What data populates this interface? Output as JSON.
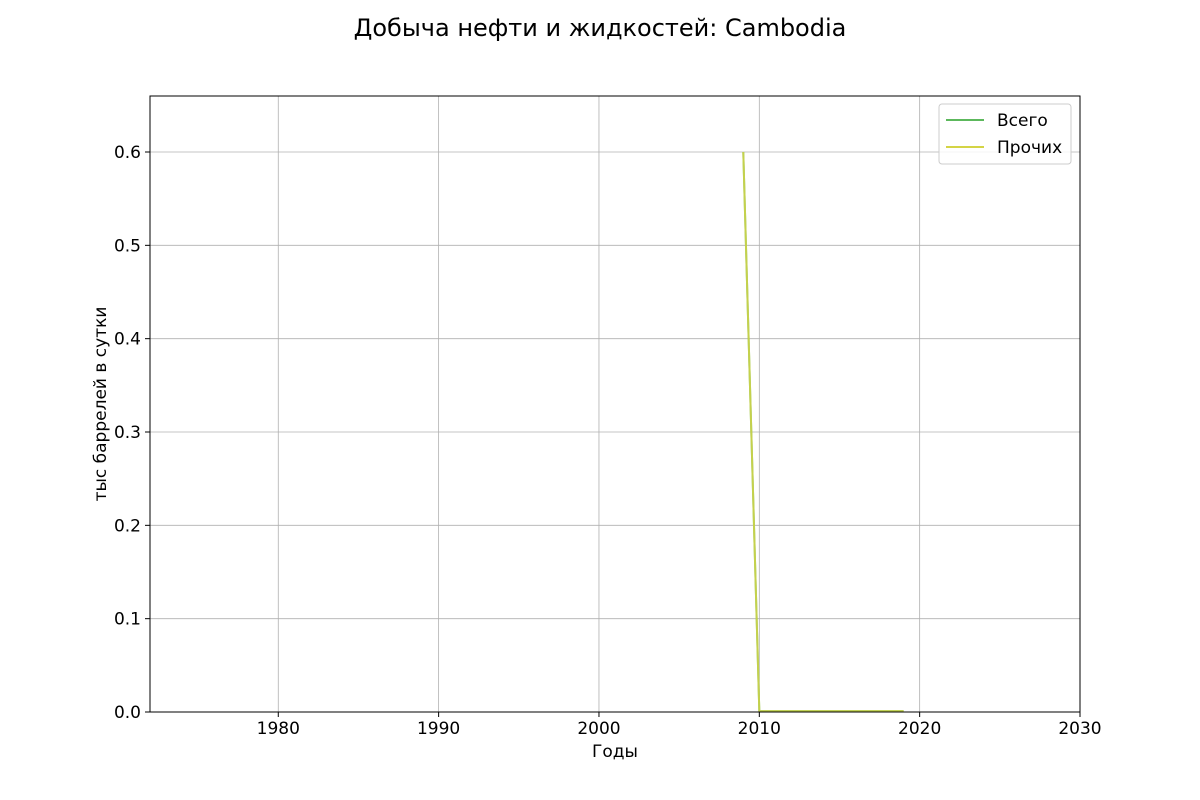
{
  "chart_data": {
    "type": "line",
    "title": "Добыча нефти и жидкостей: Cambodia",
    "xlabel": "Годы",
    "ylabel": "тыс баррелей в сутки",
    "xlim": [
      1972,
      2030
    ],
    "ylim": [
      0,
      0.66
    ],
    "xticks": [
      1980,
      1990,
      2000,
      2010,
      2020,
      2030
    ],
    "yticks": [
      0.0,
      0.1,
      0.2,
      0.3,
      0.4,
      0.5,
      0.6
    ],
    "ytick_labels": [
      "0.0",
      "0.1",
      "0.2",
      "0.3",
      "0.4",
      "0.5",
      "0.6"
    ],
    "grid": true,
    "legend_position": "top-right",
    "series": [
      {
        "name": "Всего",
        "color": "#5cb85c",
        "x": [
          2009,
          2010,
          2011,
          2012,
          2013,
          2014,
          2015,
          2016,
          2017,
          2018,
          2019
        ],
        "y": [
          0.6,
          0.001,
          0.001,
          0.001,
          0.001,
          0.001,
          0.001,
          0.001,
          0.001,
          0.001,
          0.001
        ]
      },
      {
        "name": "Прочих",
        "color": "#d4d445",
        "x": [
          2009,
          2010,
          2011,
          2012,
          2013,
          2014,
          2015,
          2016,
          2017,
          2018,
          2019
        ],
        "y": [
          0.6,
          0.001,
          0.001,
          0.001,
          0.001,
          0.001,
          0.001,
          0.001,
          0.001,
          0.001,
          0.001
        ]
      }
    ]
  }
}
